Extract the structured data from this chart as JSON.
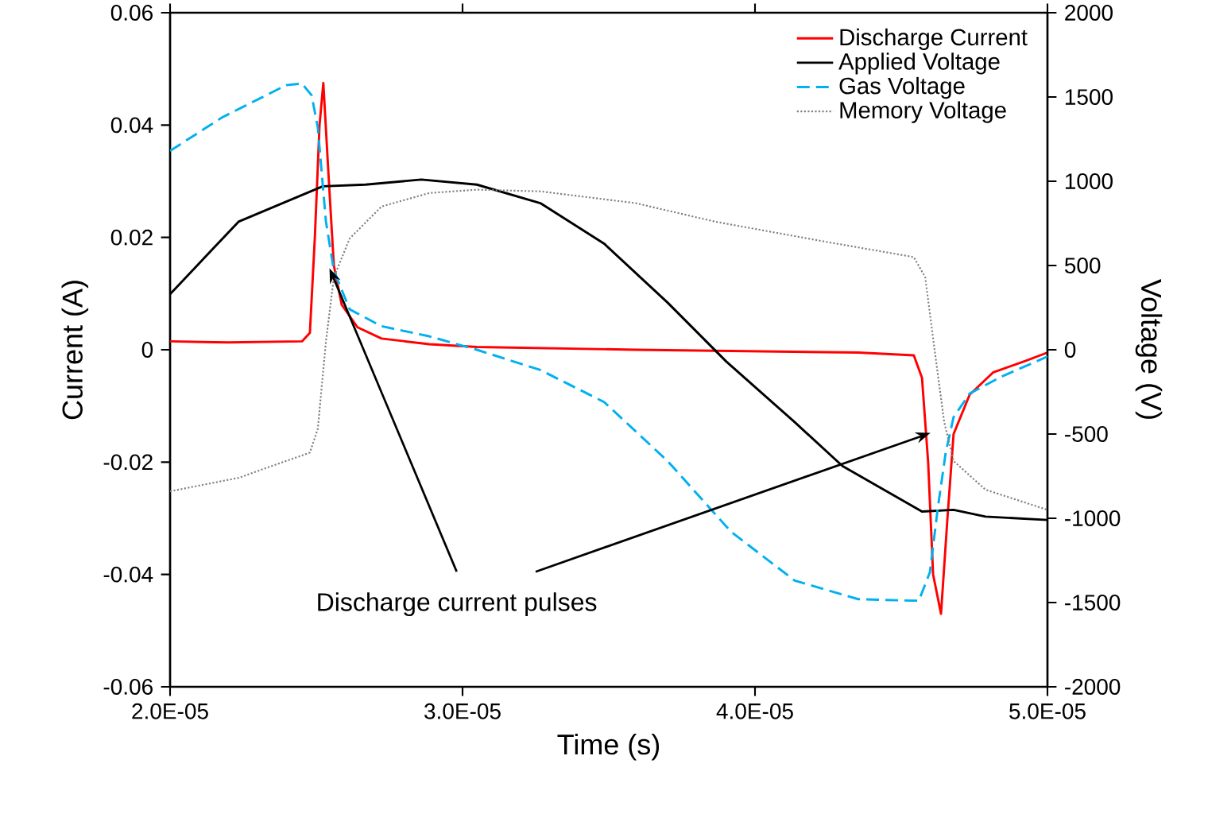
{
  "chart_data": {
    "type": "line",
    "xlabel": "Time (s)",
    "ylabel": "Current (A)",
    "y2label": "Voltage (V)",
    "xlim": [
      2e-05,
      5e-05
    ],
    "xticks": [
      {
        "value": 2e-05,
        "label": "2.0E-05"
      },
      {
        "value": 3e-05,
        "label": "3.0E-05"
      },
      {
        "value": 4e-05,
        "label": "4.0E-05"
      },
      {
        "value": 5e-05,
        "label": "5.0E-05"
      }
    ],
    "ylim": [
      -0.06,
      0.06
    ],
    "yticks": [
      -0.06,
      -0.04,
      -0.02,
      0,
      0.02,
      0.04,
      0.06
    ],
    "y2lim": [
      -2000,
      2000
    ],
    "y2ticks": [
      -2000,
      -1500,
      -1000,
      -500,
      0,
      500,
      1000,
      1500,
      2000
    ],
    "legend": "top right",
    "annotations": [
      {
        "text": "Discharge current pulses",
        "x": 2.545e-05,
        "y": 0.0145
      }
    ],
    "series": [
      {
        "name": "Discharge Current",
        "color": "#ff0000",
        "axis": "y",
        "line_style": "solid",
        "x": [
          2e-05,
          2.2e-05,
          2.451e-05,
          2.478e-05,
          2.495e-05,
          2.511e-05,
          2.524e-05,
          2.543e-05,
          2.56e-05,
          2.587e-05,
          2.641e-05,
          2.723e-05,
          2.886e-05,
          3.049e-05,
          3.592e-05,
          4.353e-05,
          4.543e-05,
          4.571e-05,
          4.592e-05,
          4.609e-05,
          4.636e-05,
          4.658e-05,
          4.679e-05,
          4.734e-05,
          4.815e-05,
          4.924e-05,
          5e-05
        ],
        "values": [
          0.0015,
          0.0013,
          0.0015,
          0.003,
          0.02,
          0.04,
          0.0475,
          0.03,
          0.015,
          0.008,
          0.004,
          0.002,
          0.001,
          0.0005,
          0,
          -0.0005,
          -0.001,
          -0.005,
          -0.02,
          -0.04,
          -0.047,
          -0.03,
          -0.015,
          -0.008,
          -0.004,
          -0.002,
          -0.0005
        ]
      },
      {
        "name": "Applied Voltage",
        "color": "#000000",
        "axis": "y2",
        "line_style": "solid",
        "x": [
          2e-05,
          2.234e-05,
          2.522e-05,
          2.668e-05,
          2.859e-05,
          3.049e-05,
          3.266e-05,
          3.484e-05,
          3.701e-05,
          3.902e-05,
          4.136e-05,
          4.299e-05,
          4.571e-05,
          4.679e-05,
          4.788e-05,
          5e-05
        ],
        "values": [
          330,
          760,
          970,
          980,
          1010,
          980,
          870,
          630,
          280,
          -70,
          -430,
          -690,
          -960,
          -950,
          -990,
          -1010
        ]
      },
      {
        "name": "Gas Voltage",
        "color": "#00b0f0",
        "axis": "y2",
        "line_style": "dashed",
        "x": [
          2e-05,
          2.179e-05,
          2.397e-05,
          2.451e-05,
          2.484e-05,
          2.505e-05,
          2.533e-05,
          2.56e-05,
          2.614e-05,
          2.723e-05,
          2.886e-05,
          3.049e-05,
          3.266e-05,
          3.484e-05,
          3.701e-05,
          3.918e-05,
          4.136e-05,
          4.353e-05,
          4.56e-05,
          4.598e-05,
          4.625e-05,
          4.652e-05,
          4.679e-05,
          4.734e-05,
          4.842e-05,
          5e-05
        ],
        "values": [
          1180,
          1380,
          1570,
          1580,
          1510,
          1320,
          760,
          470,
          240,
          140,
          80,
          0,
          -120,
          -310,
          -660,
          -1080,
          -1370,
          -1480,
          -1490,
          -1320,
          -940,
          -610,
          -400,
          -260,
          -160,
          -40
        ]
      },
      {
        "name": "Memory Voltage",
        "color": "#808080",
        "axis": "y2",
        "line_style": "dotted",
        "x": [
          2e-05,
          2.234e-05,
          2.478e-05,
          2.505e-05,
          2.533e-05,
          2.56e-05,
          2.614e-05,
          2.723e-05,
          2.886e-05,
          3.049e-05,
          3.266e-05,
          3.592e-05,
          3.864e-05,
          4.245e-05,
          4.543e-05,
          4.582e-05,
          4.614e-05,
          4.647e-05,
          4.679e-05,
          4.788e-05,
          5e-05
        ],
        "values": [
          -840,
          -760,
          -610,
          -470,
          50,
          430,
          660,
          850,
          930,
          950,
          940,
          870,
          760,
          640,
          550,
          430,
          0,
          -430,
          -660,
          -830,
          -950
        ]
      }
    ]
  }
}
